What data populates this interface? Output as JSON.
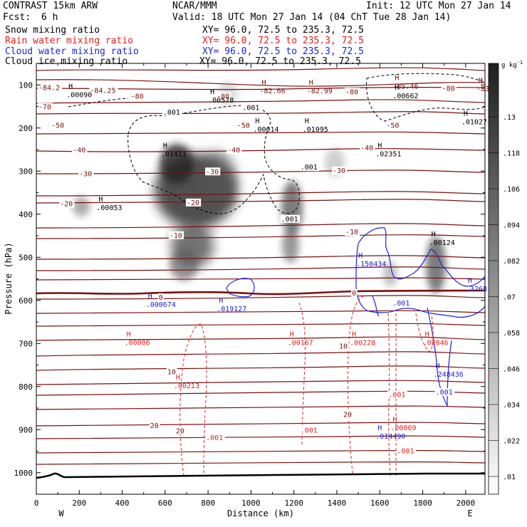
{
  "header": {
    "model": "CONTRAST 15km ARW",
    "org": "NCAR/MMM",
    "init": "Init: 12 UTC Mon 27 Jan 14",
    "fcst_label": "Fcst:",
    "fcst_value": "6 h",
    "valid": "Valid: 18 UTC Mon 27 Jan 14 (04 ChT Tue 28 Jan 14)"
  },
  "fields": [
    {
      "name": "Snow mixing ratio",
      "xy": "XY=  96.0, 72.5 to 235.3, 72.5",
      "color": "#000000"
    },
    {
      "name": "Rain water mixing ratio",
      "xy": "XY=  96.0, 72.5 to 235.3, 72.5",
      "color": "#e8201c"
    },
    {
      "name": "Cloud water mixing ratio",
      "xy": "XY=  96.0, 72.5 to 235.3, 72.5",
      "color": "#1f22d6"
    },
    {
      "name": "Cloud ice mixing ratio",
      "xy": "XY=  96.0, 72.5 to 235.3, 72.5",
      "color": "#000000"
    }
  ],
  "colors": {
    "temp": "#7a0f0f",
    "rain": "#e8201c",
    "cloud": "#1f22d6",
    "ice": "#000000"
  },
  "chart_data": {
    "type": "cross-section",
    "xlabel": "Distance (km)",
    "ylabel": "Pressure (hPa)",
    "xlim": [
      0,
      2090
    ],
    "ylim": [
      1050,
      50
    ],
    "x_ticks": [
      "0",
      "200",
      "400",
      "600",
      "800",
      "1000",
      "1200",
      "1400",
      "1600",
      "1800",
      "2000"
    ],
    "x_tick_values": [
      0,
      200,
      400,
      600,
      800,
      1000,
      1200,
      1400,
      1600,
      1800,
      2000
    ],
    "y_ticks": [
      "100",
      "200",
      "300",
      "400",
      "500",
      "600",
      "700",
      "800",
      "900",
      "1000"
    ],
    "y_tick_values": [
      100,
      200,
      300,
      400,
      500,
      600,
      700,
      800,
      900,
      1000
    ],
    "left_end": "W",
    "right_end": "E",
    "colorbar": {
      "unit": "g kg",
      "exp": "-1",
      "labels": [
        ".13",
        ".118",
        ".106",
        ".094",
        ".082",
        ".07",
        ".058",
        ".046",
        ".034",
        ".022",
        ".01"
      ],
      "values": [
        0.13,
        0.118,
        0.106,
        0.094,
        0.082,
        0.07,
        0.058,
        0.046,
        0.034,
        0.022,
        0.01
      ]
    },
    "isotherms": [
      {
        "label": "-84.2",
        "km": 0,
        "p": 105
      },
      {
        "label": "-84.25",
        "km": 240,
        "p": 112
      },
      {
        "label": "-80",
        "km": 430,
        "p": 125
      },
      {
        "label": "-80",
        "km": 830,
        "p": 125
      },
      {
        "label": "-80",
        "km": 1430,
        "p": 115
      },
      {
        "label": "-80",
        "km": 1880,
        "p": 107
      },
      {
        "label": "-70",
        "km": 0,
        "p": 150
      },
      {
        "label": "-50",
        "km": 60,
        "p": 193
      },
      {
        "label": "-50",
        "km": 925,
        "p": 193
      },
      {
        "label": "-50",
        "km": 1620,
        "p": 193
      },
      {
        "label": "-40",
        "km": 160,
        "p": 250
      },
      {
        "label": "-40",
        "km": 880,
        "p": 250
      },
      {
        "label": "-40",
        "km": 1500,
        "p": 245
      },
      {
        "label": "-30",
        "km": 190,
        "p": 305
      },
      {
        "label": "-30",
        "km": 780,
        "p": 300
      },
      {
        "label": "-30",
        "km": 1370,
        "p": 298
      },
      {
        "label": "-20",
        "km": 100,
        "p": 375
      },
      {
        "label": "-20",
        "km": 690,
        "p": 372
      },
      {
        "label": "-10",
        "km": 610,
        "p": 448
      },
      {
        "label": "-10",
        "km": 1430,
        "p": 440
      },
      {
        "label": "0",
        "km": 560,
        "p": 592
      },
      {
        "label": "0",
        "km": 1460,
        "p": 582
      },
      {
        "label": "10",
        "km": 1400,
        "p": 705
      },
      {
        "label": "10",
        "km": 600,
        "p": 765
      },
      {
        "label": "20",
        "km": 1420,
        "p": 864
      },
      {
        "label": "20",
        "km": 520,
        "p": 890
      },
      {
        "label": "20",
        "km": 640,
        "p": 902
      }
    ],
    "maxima": [
      {
        "label": ".00090",
        "km": 140,
        "p": 125,
        "kind": "ice"
      },
      {
        "label": ".00578",
        "km": 800,
        "p": 138,
        "kind": "ice"
      },
      {
        "label": "-82.66",
        "km": 1040,
        "p": 116,
        "kind": "temp"
      },
      {
        "label": "-82.99",
        "km": 1260,
        "p": 116,
        "kind": "temp"
      },
      {
        "label": "-85.46",
        "km": 1660,
        "p": 105,
        "kind": "temp"
      },
      {
        "label": ".00662",
        "km": 1660,
        "p": 128,
        "kind": "ice"
      },
      {
        "label": "-83.",
        "km": 2050,
        "p": 111,
        "kind": "temp"
      },
      {
        "label": ".00014",
        "km": 1010,
        "p": 205,
        "kind": "ice"
      },
      {
        "label": ".01095",
        "km": 1240,
        "p": 205,
        "kind": "ice"
      },
      {
        "label": ".01027",
        "km": 1980,
        "p": 188,
        "kind": "ice"
      },
      {
        "label": ".01411",
        "km": 580,
        "p": 262,
        "kind": "ice"
      },
      {
        "label": ".02351",
        "km": 1580,
        "p": 262,
        "kind": "ice"
      },
      {
        "label": ".00053",
        "km": 280,
        "p": 387,
        "kind": "ice"
      },
      {
        "label": ".00124",
        "km": 1830,
        "p": 468,
        "kind": "ice"
      },
      {
        "label": ".150434",
        "km": 1490,
        "p": 518,
        "kind": "cloud"
      },
      {
        "label": ".3268",
        "km": 2000,
        "p": 576,
        "kind": "cloud"
      },
      {
        "label": ".000674",
        "km": 510,
        "p": 612,
        "kind": "cloud"
      },
      {
        "label": ".019127",
        "km": 840,
        "p": 622,
        "kind": "cloud"
      },
      {
        "label": ".00006",
        "km": 410,
        "p": 700,
        "kind": "rain"
      },
      {
        "label": ".00167",
        "km": 1170,
        "p": 700,
        "kind": "rain"
      },
      {
        "label": ".00228",
        "km": 1460,
        "p": 700,
        "kind": "rain"
      },
      {
        "label": ".02846",
        "km": 1800,
        "p": 700,
        "kind": "rain"
      },
      {
        "label": ".248436",
        "km": 1850,
        "p": 774,
        "kind": "cloud"
      },
      {
        "label": ".00213",
        "km": 640,
        "p": 800,
        "kind": "rain"
      },
      {
        "label": ".00069",
        "km": 1650,
        "p": 898,
        "kind": "rain"
      },
      {
        "label": ".014490",
        "km": 1580,
        "p": 918,
        "kind": "cloud"
      }
    ],
    "contour_labels": [
      {
        "label": ".001",
        "km": 590,
        "p": 162,
        "kind": "ice"
      },
      {
        "label": ".001",
        "km": 960,
        "p": 152,
        "kind": "ice"
      },
      {
        "label": ".001",
        "km": 1230,
        "p": 290,
        "kind": "ice"
      },
      {
        "label": ".001",
        "km": 1140,
        "p": 410,
        "kind": "ice"
      },
      {
        "label": ".001",
        "km": 1660,
        "p": 605,
        "kind": "cloud"
      },
      {
        "label": ".001",
        "km": 1860,
        "p": 812,
        "kind": "cloud"
      },
      {
        "label": ".001",
        "km": 1640,
        "p": 818,
        "kind": "rain"
      },
      {
        "label": ".001",
        "km": 1230,
        "p": 900,
        "kind": "rain"
      },
      {
        "label": ".001",
        "km": 790,
        "p": 918,
        "kind": "rain"
      },
      {
        "label": ".001",
        "km": 1680,
        "p": 948,
        "kind": "rain"
      }
    ]
  }
}
